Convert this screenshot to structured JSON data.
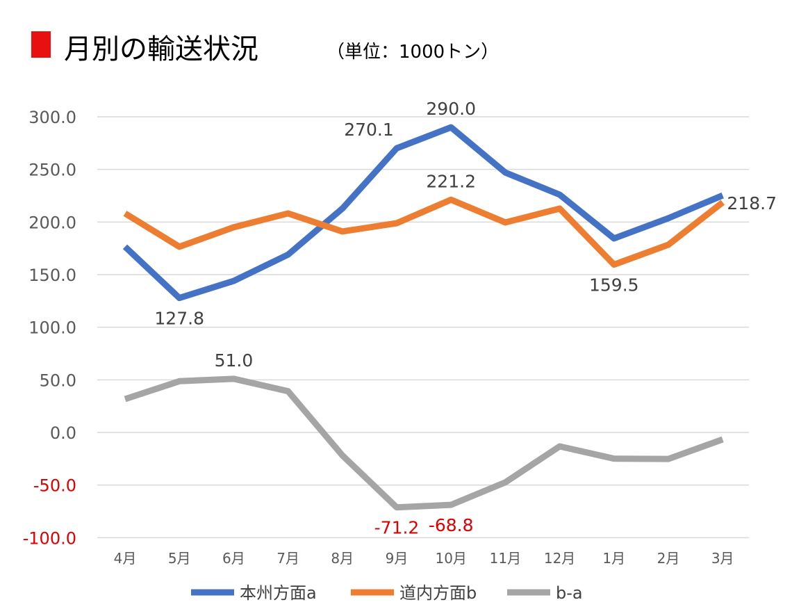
{
  "chart_data": {
    "type": "line",
    "title": "月別の輸送状況",
    "subtitle": "（単位：1000トン）",
    "title_marker_color": "#e81010",
    "categories": [
      "4月",
      "5月",
      "6月",
      "7月",
      "8月",
      "9月",
      "10月",
      "11月",
      "12月",
      "1月",
      "2月",
      "3月"
    ],
    "ylim": [
      -100,
      300
    ],
    "yticks": [
      "300.0",
      "250.0",
      "200.0",
      "150.0",
      "100.0",
      "50.0",
      "0.0",
      "-50.0",
      "-100.0"
    ],
    "ytick_values": [
      300,
      250,
      200,
      150,
      100,
      50,
      0,
      -50,
      -100
    ],
    "negative_tick_color": "#e00000",
    "grid": true,
    "legend": "bottom",
    "series": [
      {
        "name": "本州方面a",
        "color": "#4472c4",
        "values": [
          176.5,
          127.8,
          144.0,
          169.0,
          212.8,
          270.1,
          290.0,
          247.0,
          226.0,
          184.4,
          203.6,
          225.3
        ]
      },
      {
        "name": "道内方面b",
        "color": "#ed7d31",
        "values": [
          208.2,
          176.5,
          195.0,
          208.2,
          191.0,
          198.9,
          221.2,
          199.6,
          212.8,
          159.5,
          178.4,
          218.7
        ]
      },
      {
        "name": "b-a",
        "color": "#a5a5a5",
        "values": [
          31.7,
          48.7,
          51.0,
          39.2,
          -21.8,
          -71.2,
          -68.8,
          -47.4,
          -13.2,
          -24.9,
          -25.2,
          -6.6
        ]
      }
    ],
    "data_labels": [
      {
        "series": 0,
        "index": 1,
        "text": "127.8",
        "pos": "below"
      },
      {
        "series": 0,
        "index": 5,
        "text": "270.1",
        "pos": "left-above"
      },
      {
        "series": 0,
        "index": 6,
        "text": "290.0",
        "pos": "above"
      },
      {
        "series": 1,
        "index": 6,
        "text": "221.2",
        "pos": "above"
      },
      {
        "series": 1,
        "index": 9,
        "text": "159.5",
        "pos": "below"
      },
      {
        "series": 1,
        "index": 11,
        "text": "218.7",
        "pos": "right"
      },
      {
        "series": 2,
        "index": 2,
        "text": "51.0",
        "pos": "above"
      },
      {
        "series": 2,
        "index": 5,
        "text": "-71.2",
        "pos": "below"
      },
      {
        "series": 2,
        "index": 6,
        "text": "-68.8",
        "pos": "below"
      }
    ]
  }
}
